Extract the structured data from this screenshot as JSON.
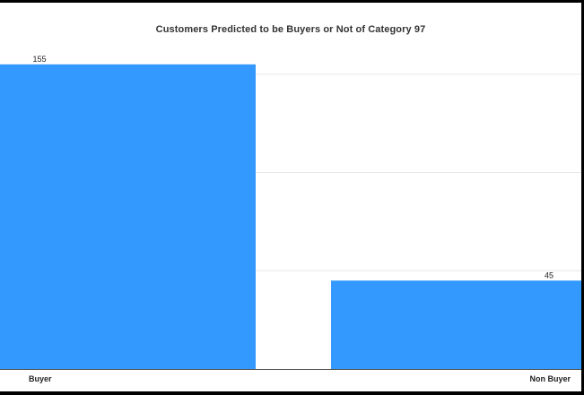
{
  "chart_data": {
    "type": "bar",
    "title": "Customers Predicted to be Buyers or Not of Category 97",
    "categories": [
      "Buyer",
      "Non Buyer"
    ],
    "values": [
      155,
      45
    ],
    "xlabel": "",
    "ylabel": "",
    "ylim": [
      0,
      180
    ],
    "grid": true,
    "bar_color": "#3399ff",
    "grid_color": "#e6e6e6"
  }
}
